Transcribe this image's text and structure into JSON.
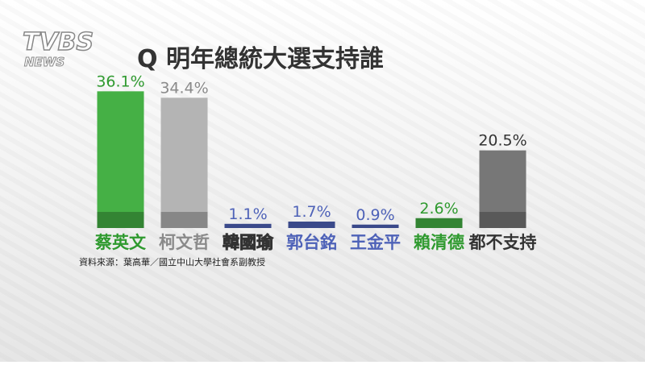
{
  "chart_data": {
    "type": "bar",
    "logo": "TVBS",
    "logo_sub": "NEWS",
    "title": "Q 明年總統大選支持誰",
    "categories": [
      "蔡英文",
      "柯文哲",
      "韓國瑜",
      "郭台銘",
      "王金平",
      "賴清德",
      "都不支持"
    ],
    "values": [
      36.1,
      34.4,
      1.1,
      1.7,
      0.9,
      2.6,
      20.5
    ],
    "value_labels": [
      "36.1%",
      "34.4%",
      "1.1%",
      "1.7%",
      "0.9%",
      "2.6%",
      "20.5%"
    ],
    "colors": [
      "#45b045",
      "#b4b4b4",
      "#4e62b8",
      "#4e62b8",
      "#4e62b8",
      "#45b045",
      "#777777"
    ],
    "label_colors": [
      "#2f9a2f",
      "#8a8a8a",
      "#f2e23a",
      "#4e62b8",
      "#4e62b8",
      "#2f9a2f",
      "#333333"
    ],
    "ylim": [
      0,
      40
    ],
    "source": "資料來源：葉高華／國立中山大學社會系副教授"
  }
}
